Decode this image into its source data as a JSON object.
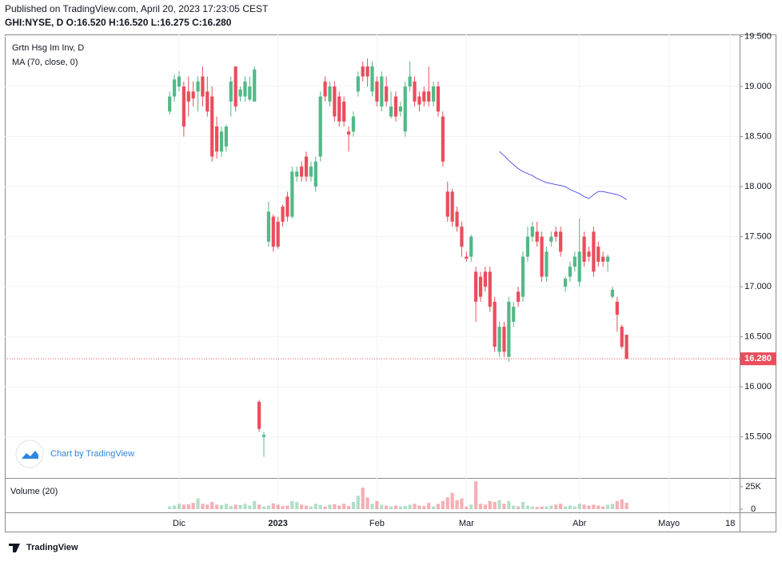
{
  "header": {
    "published": "Published on TradingView.com, April 20, 2023 17:23:05 CEST",
    "symbol_line": "GHI:NYSE, D  O:16.520 H:16.520 L:16.275 C:16.280"
  },
  "chart_data": {
    "type": "candlestick",
    "title": "Grtn Hsg Im Inv, D",
    "colors": {
      "up": "#53b987",
      "down": "#eb4d5c"
    },
    "open": [
      18.75,
      18.9,
      19.0,
      19.0,
      18.95,
      18.95,
      18.95,
      19.1,
      18.95,
      18.9,
      18.6,
      18.35,
      18.4,
      18.85,
      19.2,
      18.9,
      18.9,
      18.87,
      18.85,
      15.85,
      15.5,
      17.45,
      17.7,
      17.65,
      17.8,
      17.9,
      17.7,
      18.1,
      18.2,
      18.3,
      18.1,
      18.0,
      18.3,
      19.05,
      18.85,
      19.0,
      18.9,
      18.85,
      18.55,
      18.55,
      18.95,
      19.2,
      19.2,
      18.95,
      19.05,
      18.8,
      19.0,
      18.7,
      18.9,
      18.75,
      18.55,
      19.0,
      19.05,
      18.9,
      18.95,
      18.95,
      18.85,
      19.0,
      18.7,
      17.95,
      17.95,
      17.75,
      17.6,
      17.3,
      17.3,
      17.15,
      17.1,
      17.15,
      17.15,
      16.85,
      16.35,
      16.6,
      16.3,
      16.65,
      16.95,
      16.9,
      17.3,
      17.5,
      17.55,
      17.5,
      17.1,
      17.45,
      17.55,
      17.55,
      17.0,
      17.1,
      17.2,
      17.05,
      17.5,
      17.35,
      17.55,
      17.4,
      17.3,
      17.25,
      16.9,
      16.85,
      16.6,
      16.52
    ],
    "high": [
      18.95,
      19.12,
      19.15,
      19.05,
      19.1,
      19.05,
      19.1,
      19.2,
      19.1,
      19.0,
      18.7,
      18.6,
      18.62,
      19.1,
      19.2,
      19.0,
      19.1,
      19.1,
      19.2,
      15.87,
      15.55,
      17.85,
      17.72,
      17.7,
      17.82,
      17.95,
      18.2,
      18.2,
      18.25,
      18.35,
      18.25,
      18.3,
      18.95,
      19.1,
      19.05,
      19.05,
      18.95,
      18.9,
      18.6,
      18.75,
      19.15,
      19.25,
      19.28,
      19.25,
      19.1,
      19.15,
      19.1,
      18.95,
      18.95,
      18.85,
      19.05,
      19.25,
      19.1,
      18.95,
      19.0,
      19.2,
      19.05,
      19.05,
      18.75,
      18.05,
      17.98,
      17.8,
      17.65,
      17.35,
      17.52,
      17.2,
      17.15,
      17.2,
      17.2,
      16.9,
      16.65,
      16.65,
      16.9,
      16.85,
      17.0,
      17.35,
      17.6,
      17.65,
      17.65,
      17.55,
      17.4,
      17.55,
      17.6,
      17.6,
      17.1,
      17.25,
      17.35,
      17.68,
      17.55,
      17.4,
      17.6,
      17.45,
      17.35,
      17.32,
      17.0,
      16.9,
      16.62,
      16.52
    ],
    "low": [
      18.72,
      18.85,
      18.95,
      18.5,
      18.7,
      18.8,
      18.75,
      18.8,
      18.7,
      18.25,
      18.28,
      18.3,
      18.35,
      18.7,
      18.75,
      18.85,
      18.85,
      18.85,
      18.85,
      15.55,
      15.3,
      17.4,
      17.35,
      17.38,
      17.6,
      17.65,
      17.68,
      18.05,
      18.05,
      18.05,
      18.05,
      17.95,
      18.25,
      18.85,
      18.8,
      18.65,
      18.6,
      18.6,
      18.35,
      18.5,
      18.9,
      19.05,
      19.0,
      18.9,
      18.8,
      18.75,
      18.8,
      18.68,
      18.65,
      18.7,
      18.5,
      18.95,
      18.8,
      18.75,
      18.8,
      18.8,
      18.8,
      18.7,
      18.2,
      17.65,
      17.6,
      17.55,
      17.3,
      17.25,
      17.25,
      16.65,
      16.85,
      16.95,
      16.75,
      16.35,
      16.3,
      16.3,
      16.25,
      16.6,
      16.8,
      16.85,
      17.25,
      17.45,
      17.4,
      17.05,
      17.05,
      17.4,
      17.45,
      17.3,
      16.95,
      17.05,
      17.15,
      17.0,
      17.2,
      17.25,
      17.1,
      17.2,
      17.2,
      17.15,
      16.88,
      16.55,
      16.38,
      16.275
    ],
    "close": [
      18.9,
      19.07,
      19.1,
      18.6,
      18.85,
      18.88,
      19.05,
      18.9,
      18.75,
      18.3,
      18.35,
      18.55,
      18.6,
      19.05,
      18.8,
      18.97,
      19.05,
      19.0,
      19.17,
      15.58,
      15.52,
      17.75,
      17.4,
      17.4,
      17.65,
      17.7,
      18.15,
      18.15,
      18.1,
      18.1,
      18.2,
      18.25,
      18.9,
      18.9,
      19.0,
      18.7,
      18.65,
      18.65,
      18.52,
      18.7,
      19.1,
      19.1,
      19.1,
      19.2,
      18.85,
      19.1,
      18.85,
      18.8,
      18.7,
      18.8,
      19.0,
      19.1,
      18.85,
      18.82,
      18.85,
      18.85,
      19.0,
      18.75,
      18.25,
      17.7,
      17.65,
      17.6,
      17.4,
      17.28,
      17.5,
      16.85,
      16.9,
      17.0,
      16.8,
      16.4,
      16.6,
      16.35,
      16.85,
      16.8,
      16.85,
      17.3,
      17.5,
      17.6,
      17.45,
      17.1,
      17.35,
      17.5,
      17.5,
      17.35,
      17.08,
      17.2,
      17.3,
      17.35,
      17.25,
      17.3,
      17.15,
      17.25,
      17.25,
      17.3,
      16.97,
      16.72,
      16.4,
      16.28
    ],
    "ma": {
      "name": "MA (70, close, 0)",
      "color": "#5a5ae6",
      "values": [
        null,
        null,
        null,
        null,
        null,
        null,
        null,
        null,
        null,
        null,
        null,
        null,
        null,
        null,
        null,
        null,
        null,
        null,
        null,
        null,
        null,
        null,
        null,
        null,
        null,
        null,
        null,
        null,
        null,
        null,
        null,
        null,
        null,
        null,
        null,
        null,
        null,
        null,
        null,
        null,
        null,
        null,
        null,
        null,
        null,
        null,
        null,
        null,
        null,
        null,
        null,
        null,
        null,
        null,
        null,
        null,
        null,
        null,
        null,
        null,
        null,
        null,
        null,
        null,
        null,
        null,
        null,
        null,
        null,
        null,
        18.35,
        18.31,
        18.26,
        18.22,
        18.18,
        18.15,
        18.13,
        18.11,
        18.08,
        18.06,
        18.04,
        18.03,
        18.02,
        18.01,
        18.0,
        17.97,
        17.95,
        17.93,
        17.9,
        17.88,
        17.92,
        17.95,
        17.95,
        17.94,
        17.93,
        17.92,
        17.9,
        17.87
      ]
    },
    "volume": {
      "name": "Volume (20)",
      "ylim": [
        0,
        32000
      ],
      "yticks": [
        0,
        {
          "value": 25000,
          "label": "25K"
        }
      ],
      "values": [
        3000,
        4000,
        6000,
        5000,
        5500,
        7000,
        12000,
        6000,
        5000,
        8000,
        5000,
        4500,
        6000,
        3500,
        5000,
        4500,
        6000,
        4000,
        9000,
        5000,
        3000,
        4000,
        6500,
        5000,
        3500,
        4000,
        9000,
        8000,
        5000,
        4000,
        3000,
        6000,
        4500,
        3000,
        5000,
        5500,
        4000,
        6000,
        3500,
        8000,
        15000,
        24000,
        13000,
        6000,
        9000,
        5000,
        4000,
        3000,
        4000,
        3000,
        3500,
        5000,
        6000,
        4000,
        3500,
        7000,
        3000,
        6000,
        9000,
        13000,
        18000,
        10000,
        12000,
        3000,
        5000,
        31000,
        6000,
        5000,
        9000,
        8000,
        10000,
        6000,
        9000,
        4000,
        3000,
        8000,
        4000,
        3000,
        2500,
        3000,
        3000,
        4000,
        5000,
        6000,
        3000,
        4000,
        3000,
        6000,
        5000,
        4000,
        5000,
        4000,
        3000,
        5000,
        6000,
        9000,
        11000,
        7000
      ]
    },
    "xlim": [
      -35,
      121
    ],
    "xticks": [
      {
        "value": 2,
        "label": "Dic"
      },
      {
        "value": 23,
        "label": "2023"
      },
      {
        "value": 44,
        "label": "Feb"
      },
      {
        "value": 63,
        "label": "Mar"
      },
      {
        "value": 87,
        "label": "Abr"
      },
      {
        "value": 106,
        "label": "Mayo"
      },
      {
        "value": 119,
        "label": "18"
      }
    ],
    "ylim": [
      15.09,
      19.52
    ],
    "yticks": [
      {
        "value": 15.5,
        "label": "15.500"
      },
      {
        "value": 16,
        "label": "16.000"
      },
      {
        "value": 16.5,
        "label": "16.500"
      },
      {
        "value": 17,
        "label": "17.000"
      },
      {
        "value": 17.5,
        "label": "17.500"
      },
      {
        "value": 18,
        "label": "18.000"
      },
      {
        "value": 18.5,
        "label": "18.500"
      },
      {
        "value": 19,
        "label": "19.000"
      },
      {
        "value": 19.5,
        "label": "19.500"
      }
    ],
    "price_line": {
      "value": 16.28,
      "label": "16.280"
    },
    "grid": true
  },
  "watermark": "Chart by TradingView",
  "footer": "TradingView"
}
